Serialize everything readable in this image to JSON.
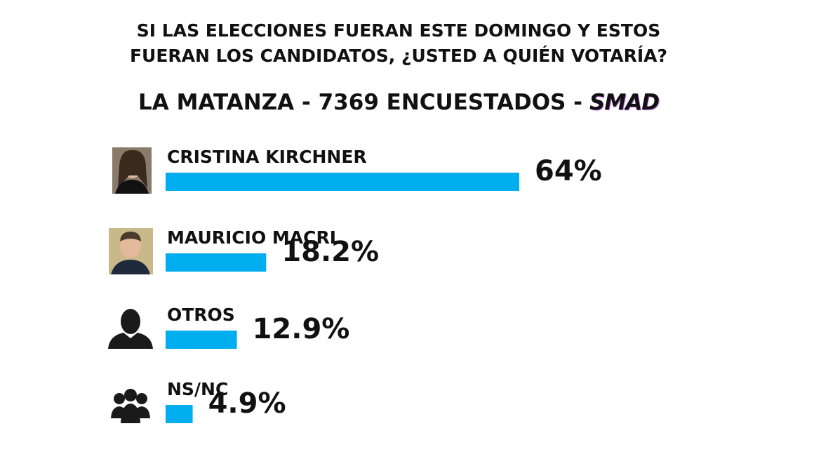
{
  "chart_data": {
    "type": "bar",
    "orientation": "horizontal",
    "title": "SI LAS ELECCIONES FUERAN ESTE DOMINGO Y ESTOS\nFUERAN LOS CANDIDATOS, ¿USTED A QUIÉN VOTARÍA?",
    "subtitle": "LA MATANZA - 7369 ENCUESTADOS -",
    "source": "SMAD",
    "categories": [
      "CRISTINA KIRCHNER",
      "MAURICIO MACRI",
      "OTROS",
      "NS/NC"
    ],
    "values": [
      64,
      18.2,
      12.9,
      4.9
    ],
    "value_labels": [
      "64%",
      "18.2%",
      "12.9%",
      "4.9%"
    ],
    "color": "#00aeef"
  }
}
